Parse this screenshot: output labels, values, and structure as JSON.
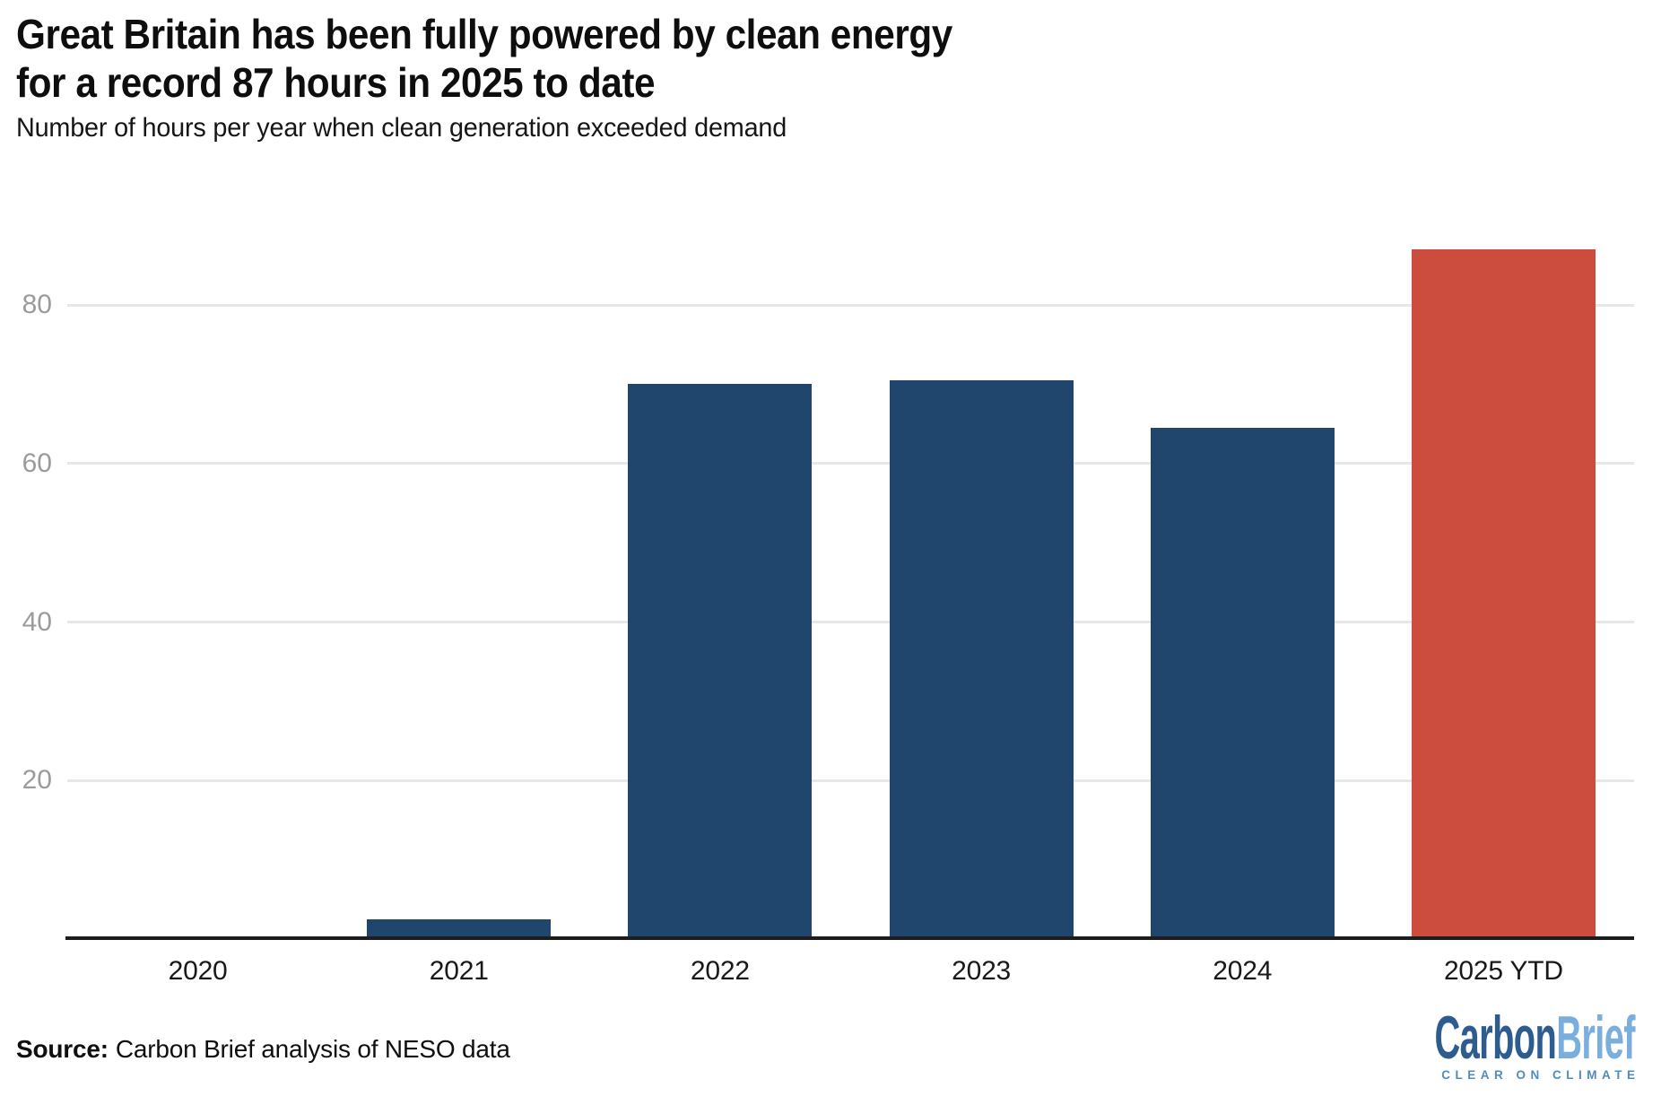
{
  "header": {
    "title": "Great Britain has been fully powered by clean energy\nfor a record 87 hours in 2025 to date",
    "subtitle": "Number of hours per year when clean generation exceeded demand"
  },
  "footer": {
    "source_label": "Source:",
    "source_text": "Carbon Brief analysis of NESO data",
    "logo": {
      "wordmark_part1": "Carbon",
      "wordmark_part2": "Brief",
      "tagline": "CLEAR ON CLIMATE"
    }
  },
  "colors": {
    "bar_blue": "#20466e",
    "bar_red": "#cc4c3d",
    "gridline": "#e7e7e7",
    "axis_line": "#1d1d1d",
    "y_tick_label": "#9b9b9b",
    "x_tick_label": "#191919",
    "logo_dark_blue": "#2d5c8f",
    "logo_light_blue": "#79aedd",
    "logo_tagline_blue": "#4d8cc0",
    "background": "#ffffff"
  },
  "chart_data": {
    "type": "bar",
    "title": "Great Britain has been fully powered by clean energy for a record 87 hours in 2025 to date",
    "subtitle": "Number of hours per year when clean generation exceeded demand",
    "categories": [
      "2020",
      "2021",
      "2022",
      "2023",
      "2024",
      "2025 YTD"
    ],
    "values": [
      0,
      2.5,
      70,
      70.5,
      64.5,
      87
    ],
    "series_colors": [
      "#20466e",
      "#20466e",
      "#20466e",
      "#20466e",
      "#20466e",
      "#cc4c3d"
    ],
    "highlight_index": 5,
    "highlight_label": "2025 YTD",
    "xlabel": "",
    "ylabel": "Number of hours per year when clean generation exceeded demand",
    "ylim": [
      0,
      95
    ],
    "yticks": [
      20,
      40,
      60,
      80
    ],
    "grid": "horizontal",
    "legend": "none",
    "source": "Source: Carbon Brief analysis of NESO data"
  }
}
